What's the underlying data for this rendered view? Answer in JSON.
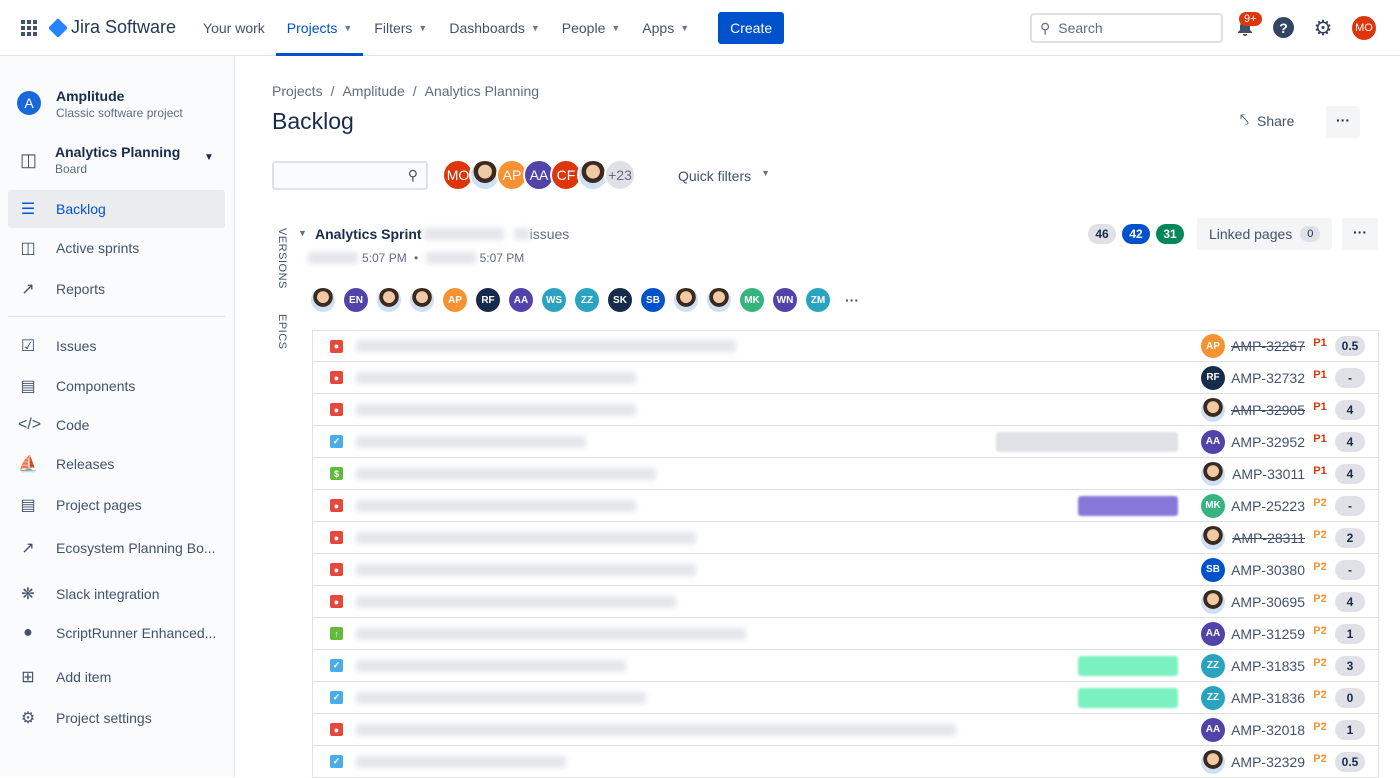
{
  "topnav": {
    "product": "Jira Software",
    "items": [
      {
        "label": "Your work",
        "chevron": false
      },
      {
        "label": "Projects",
        "chevron": true,
        "active": true
      },
      {
        "label": "Filters",
        "chevron": true
      },
      {
        "label": "Dashboards",
        "chevron": true
      },
      {
        "label": "People",
        "chevron": true
      },
      {
        "label": "Apps",
        "chevron": true
      }
    ],
    "create": "Create",
    "search_placeholder": "Search",
    "notifications": "9+",
    "user": "MO"
  },
  "sidebar": {
    "project": {
      "name": "Amplitude",
      "type": "Classic software project"
    },
    "board": {
      "name": "Analytics Planning",
      "type": "Board"
    },
    "items": [
      {
        "label": "Backlog",
        "icon": "backlog-icon"
      },
      {
        "label": "Active sprints",
        "icon": "board-icon"
      },
      {
        "label": "Reports",
        "icon": "chart-icon"
      },
      {
        "label": "Issues",
        "icon": "issues-icon"
      },
      {
        "label": "Components",
        "icon": "components-icon"
      },
      {
        "label": "Code",
        "icon": "code-icon"
      },
      {
        "label": "Releases",
        "icon": "ship-icon"
      },
      {
        "label": "Project pages",
        "icon": "page-icon"
      },
      {
        "label": "Ecosystem Planning Bo...",
        "icon": "external-link-icon"
      },
      {
        "label": "Slack integration",
        "icon": "slack-icon"
      },
      {
        "label": "ScriptRunner Enhanced...",
        "icon": "scriptrunner-icon"
      },
      {
        "label": "Add item",
        "icon": "add-item-icon"
      },
      {
        "label": "Project settings",
        "icon": "gear-icon"
      }
    ]
  },
  "breadcrumb": [
    "Projects",
    "Amplitude",
    "Analytics Planning"
  ],
  "page_title": "Backlog",
  "share": "Share",
  "filter_avatars": [
    {
      "i": "MO",
      "c": "#de350b"
    },
    {
      "i": "",
      "c": "photo"
    },
    {
      "i": "AP",
      "c": "#f79232"
    },
    {
      "i": "AA",
      "c": "#5243aa"
    },
    {
      "i": "CF",
      "c": "#de350b"
    },
    {
      "i": "",
      "c": "photo"
    },
    {
      "i": "+23",
      "c": "#dfe1e6"
    }
  ],
  "quick_filters": "Quick filters",
  "side_tabs": [
    "VERSIONS",
    "EPICS"
  ],
  "sprint": {
    "name": "Analytics Sprint",
    "issues_suffix": "issues",
    "start_time": "5:07 PM",
    "end_time": "5:07 PM",
    "counts": [
      "46",
      "42",
      "31"
    ],
    "linked_pages": "Linked pages",
    "linked_count": "0",
    "assignees": [
      {
        "i": "",
        "c": "photo"
      },
      {
        "i": "EN",
        "c": "#5243aa"
      },
      {
        "i": "",
        "c": "photo"
      },
      {
        "i": "",
        "c": "photo"
      },
      {
        "i": "AP",
        "c": "#f79232"
      },
      {
        "i": "RF",
        "c": "#172b4d"
      },
      {
        "i": "AA",
        "c": "#5243aa"
      },
      {
        "i": "WS",
        "c": "#2aa3c0"
      },
      {
        "i": "ZZ",
        "c": "#2aa3c0"
      },
      {
        "i": "SK",
        "c": "#172b4d"
      },
      {
        "i": "SB",
        "c": "#0052cc"
      },
      {
        "i": "",
        "c": "photo"
      },
      {
        "i": "",
        "c": "photo"
      },
      {
        "i": "MK",
        "c": "#36b37e"
      },
      {
        "i": "WN",
        "c": "#5243aa"
      },
      {
        "i": "ZM",
        "c": "#2aa3c0"
      }
    ]
  },
  "issues": [
    {
      "type": "bug",
      "key": "AMP-32267",
      "done": true,
      "pri": "P1",
      "pts": "0.5",
      "a": "AP",
      "ac": "#f79232"
    },
    {
      "type": "bug",
      "key": "AMP-32732",
      "done": false,
      "pri": "P1",
      "pts": "-",
      "a": "RF",
      "ac": "#172b4d"
    },
    {
      "type": "bug",
      "key": "AMP-32905",
      "done": true,
      "pri": "P1",
      "pts": "4",
      "a": "",
      "ac": "photo"
    },
    {
      "type": "task",
      "key": "AMP-32952",
      "done": false,
      "pri": "P1",
      "pts": "4",
      "a": "AA",
      "ac": "#5243aa",
      "epic": "#dfe1e6"
    },
    {
      "type": "story",
      "key": "AMP-33011",
      "done": false,
      "pri": "P1",
      "pts": "4",
      "a": "",
      "ac": "photo"
    },
    {
      "type": "bug",
      "key": "AMP-25223",
      "done": false,
      "pri": "P2",
      "pts": "-",
      "a": "MK",
      "ac": "#36b37e",
      "epic": "#8777d9"
    },
    {
      "type": "bug",
      "key": "AMP-28311",
      "done": true,
      "pri": "P2",
      "pts": "2",
      "a": "",
      "ac": "photo"
    },
    {
      "type": "bug",
      "key": "AMP-30380",
      "done": false,
      "pri": "P2",
      "pts": "-",
      "a": "SB",
      "ac": "#0052cc"
    },
    {
      "type": "bug",
      "key": "AMP-30695",
      "done": false,
      "pri": "P2",
      "pts": "4",
      "a": "",
      "ac": "photo"
    },
    {
      "type": "improvement",
      "key": "AMP-31259",
      "done": false,
      "pri": "P2",
      "pts": "1",
      "a": "AA",
      "ac": "#5243aa"
    },
    {
      "type": "task",
      "key": "AMP-31835",
      "done": false,
      "pri": "P2",
      "pts": "3",
      "a": "ZZ",
      "ac": "#2aa3c0",
      "epic": "#79f2c0"
    },
    {
      "type": "task",
      "key": "AMP-31836",
      "done": false,
      "pri": "P2",
      "pts": "0",
      "a": "ZZ",
      "ac": "#2aa3c0",
      "epic": "#79f2c0"
    },
    {
      "type": "bug",
      "key": "AMP-32018",
      "done": false,
      "pri": "P2",
      "pts": "1",
      "a": "AA",
      "ac": "#5243aa"
    },
    {
      "type": "task",
      "key": "AMP-32329",
      "done": false,
      "pri": "P2",
      "pts": "0.5",
      "a": "",
      "ac": "photo"
    }
  ],
  "colors": {
    "accent": "#0052cc",
    "bug": "#e5493a",
    "task": "#4bade8",
    "story": "#63ba3c",
    "p1": "#de350b",
    "p2": "#f79232"
  }
}
